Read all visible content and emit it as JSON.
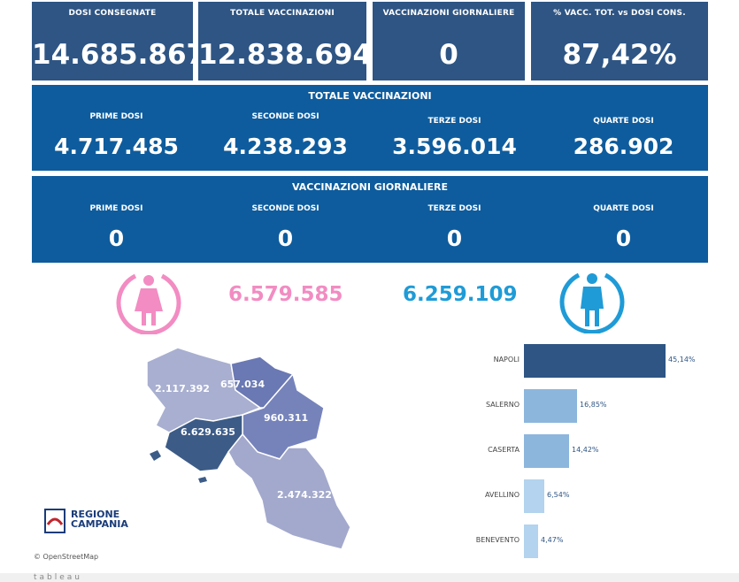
{
  "kpis": [
    {
      "label": "DOSI CONSEGNATE",
      "value": "14.685.867"
    },
    {
      "label": "TOTALE VACCINAZIONI",
      "value": "12.838.694"
    },
    {
      "label": "VACCINAZIONI GIORNALIERE",
      "value": "0"
    },
    {
      "label": "% VACC. TOT. vs DOSI CONS.",
      "value": "87,42%"
    }
  ],
  "totale": {
    "title": "TOTALE VACCINAZIONI",
    "cols": [
      {
        "label": "PRIME DOSI",
        "value": "4.717.485"
      },
      {
        "label": "SECONDE DOSI",
        "value": "4.238.293"
      },
      {
        "label": "TERZE DOSI",
        "value": "3.596.014"
      },
      {
        "label": "QUARTE DOSI",
        "value": "286.902"
      }
    ]
  },
  "giornaliere": {
    "title": "VACCINAZIONI GIORNALIERE",
    "cols": [
      {
        "label": "PRIME DOSI",
        "value": "0"
      },
      {
        "label": "SECONDE DOSI",
        "value": "0"
      },
      {
        "label": "TERZE DOSI",
        "value": "0"
      },
      {
        "label": "QUARTE DOSI",
        "value": "0"
      }
    ]
  },
  "gender": {
    "female_value": "6.579.585",
    "male_value": "6.259.109",
    "female_color": "#f28cc2",
    "male_color": "#1f9bd7"
  },
  "map": {
    "provinces": [
      {
        "name": "caserta",
        "value": "2.117.392",
        "color": "#a8afd0"
      },
      {
        "name": "benevento",
        "value": "657.034",
        "color": "#6a78b3"
      },
      {
        "name": "avellino",
        "value": "960.311",
        "color": "#7683bb"
      },
      {
        "name": "napoli",
        "value": "6.629.635",
        "color": "#3c5b87"
      },
      {
        "name": "salerno",
        "value": "2.474.322",
        "color": "#a3a9cc"
      }
    ],
    "credit": "© OpenStreetMap",
    "logo_line1": "REGIONE",
    "logo_line2": "CAMPANIA"
  },
  "chart_data": {
    "type": "bar",
    "categories": [
      "NAPOLI",
      "SALERNO",
      "CASERTA",
      "AVELLINO",
      "BENEVENTO"
    ],
    "values": [
      45.14,
      16.85,
      14.42,
      6.54,
      4.47
    ],
    "value_labels": [
      "45,14%",
      "16,85%",
      "14,42%",
      "6,54%",
      "4,47%"
    ],
    "colors": [
      "#2e5584",
      "#8db6dd",
      "#8db6dd",
      "#b3d3ee",
      "#b3d3ee"
    ],
    "orientation": "horizontal"
  },
  "footer": {
    "brand": "tableau"
  }
}
